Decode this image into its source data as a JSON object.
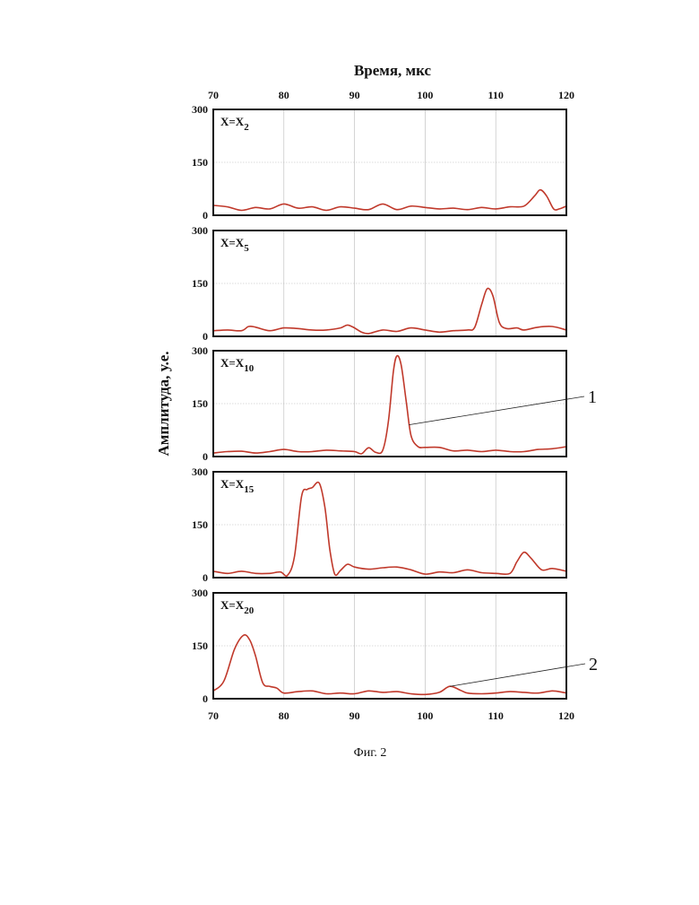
{
  "chart_data": {
    "type": "line",
    "title": "Время, мкс",
    "ylabel": "Амплитуда, у.е.",
    "xlim": [
      70,
      120
    ],
    "ylim": [
      0,
      300
    ],
    "x_ticks": [
      70,
      80,
      90,
      100,
      110,
      120
    ],
    "y_ticks": [
      0,
      150,
      300
    ],
    "grid": true,
    "line_color": "#c0392b",
    "grid_color": "#b8b8b8",
    "caption": "Фиг. 2",
    "panels": [
      {
        "label_main": "X=X",
        "label_sub": "2",
        "points": [
          [
            70,
            28
          ],
          [
            72,
            24
          ],
          [
            74,
            14
          ],
          [
            76,
            22
          ],
          [
            78,
            18
          ],
          [
            80,
            32
          ],
          [
            82,
            20
          ],
          [
            84,
            24
          ],
          [
            86,
            14
          ],
          [
            88,
            24
          ],
          [
            90,
            20
          ],
          [
            92,
            16
          ],
          [
            94,
            32
          ],
          [
            96,
            16
          ],
          [
            98,
            26
          ],
          [
            100,
            22
          ],
          [
            102,
            18
          ],
          [
            104,
            20
          ],
          [
            106,
            16
          ],
          [
            108,
            22
          ],
          [
            110,
            18
          ],
          [
            112,
            24
          ],
          [
            114,
            26
          ],
          [
            115.5,
            55
          ],
          [
            116.3,
            72
          ],
          [
            117.2,
            55
          ],
          [
            118.2,
            18
          ],
          [
            119,
            18
          ],
          [
            120,
            26
          ]
        ]
      },
      {
        "label_main": "X=X",
        "label_sub": "5",
        "points": [
          [
            70,
            16
          ],
          [
            72,
            18
          ],
          [
            74,
            16
          ],
          [
            75,
            28
          ],
          [
            76,
            26
          ],
          [
            78,
            16
          ],
          [
            80,
            24
          ],
          [
            82,
            22
          ],
          [
            84,
            18
          ],
          [
            86,
            18
          ],
          [
            88,
            24
          ],
          [
            89,
            32
          ],
          [
            90,
            24
          ],
          [
            91,
            12
          ],
          [
            92,
            8
          ],
          [
            94,
            18
          ],
          [
            96,
            14
          ],
          [
            98,
            24
          ],
          [
            100,
            18
          ],
          [
            102,
            12
          ],
          [
            104,
            16
          ],
          [
            106,
            18
          ],
          [
            107,
            25
          ],
          [
            108,
            90
          ],
          [
            108.8,
            135
          ],
          [
            109.6,
            115
          ],
          [
            110.5,
            40
          ],
          [
            111.5,
            22
          ],
          [
            113,
            24
          ],
          [
            114,
            18
          ],
          [
            116,
            26
          ],
          [
            118,
            28
          ],
          [
            120,
            18
          ]
        ]
      },
      {
        "label_main": "X=X",
        "label_sub": "10",
        "points": [
          [
            70,
            10
          ],
          [
            72,
            14
          ],
          [
            74,
            15
          ],
          [
            76,
            10
          ],
          [
            78,
            14
          ],
          [
            80,
            20
          ],
          [
            82,
            14
          ],
          [
            84,
            14
          ],
          [
            86,
            18
          ],
          [
            88,
            16
          ],
          [
            90,
            14
          ],
          [
            91,
            8
          ],
          [
            92,
            25
          ],
          [
            93,
            12
          ],
          [
            94,
            18
          ],
          [
            94.8,
            100
          ],
          [
            95.5,
            240
          ],
          [
            96,
            285
          ],
          [
            96.6,
            260
          ],
          [
            97.3,
            160
          ],
          [
            98,
            60
          ],
          [
            99,
            28
          ],
          [
            100,
            26
          ],
          [
            102,
            26
          ],
          [
            104,
            16
          ],
          [
            106,
            18
          ],
          [
            108,
            14
          ],
          [
            110,
            18
          ],
          [
            112,
            14
          ],
          [
            114,
            14
          ],
          [
            116,
            20
          ],
          [
            118,
            22
          ],
          [
            120,
            28
          ]
        ]
      },
      {
        "label_main": "X=X",
        "label_sub": "15",
        "points": [
          [
            70,
            18
          ],
          [
            72,
            12
          ],
          [
            74,
            18
          ],
          [
            76,
            12
          ],
          [
            78,
            12
          ],
          [
            79.5,
            16
          ],
          [
            80.5,
            6
          ],
          [
            81.5,
            60
          ],
          [
            82.5,
            230
          ],
          [
            83.3,
            250
          ],
          [
            84,
            255
          ],
          [
            85,
            268
          ],
          [
            85.8,
            200
          ],
          [
            86.5,
            80
          ],
          [
            87.2,
            10
          ],
          [
            88,
            20
          ],
          [
            89,
            38
          ],
          [
            90,
            30
          ],
          [
            92,
            24
          ],
          [
            94,
            28
          ],
          [
            96,
            30
          ],
          [
            98,
            22
          ],
          [
            100,
            10
          ],
          [
            102,
            16
          ],
          [
            104,
            14
          ],
          [
            106,
            22
          ],
          [
            108,
            14
          ],
          [
            110,
            12
          ],
          [
            112,
            12
          ],
          [
            113,
            45
          ],
          [
            114,
            72
          ],
          [
            115,
            55
          ],
          [
            116.5,
            22
          ],
          [
            118,
            26
          ],
          [
            120,
            18
          ]
        ]
      },
      {
        "label_main": "X=X",
        "label_sub": "20",
        "points": [
          [
            70,
            22
          ],
          [
            71.5,
            50
          ],
          [
            73,
            140
          ],
          [
            74.3,
            180
          ],
          [
            75.2,
            165
          ],
          [
            76,
            120
          ],
          [
            77,
            45
          ],
          [
            78,
            35
          ],
          [
            79,
            30
          ],
          [
            80,
            16
          ],
          [
            82,
            20
          ],
          [
            84,
            22
          ],
          [
            86,
            14
          ],
          [
            88,
            16
          ],
          [
            90,
            14
          ],
          [
            92,
            22
          ],
          [
            94,
            18
          ],
          [
            96,
            20
          ],
          [
            98,
            14
          ],
          [
            100,
            12
          ],
          [
            102,
            18
          ],
          [
            103.5,
            35
          ],
          [
            105,
            24
          ],
          [
            106,
            16
          ],
          [
            108,
            14
          ],
          [
            110,
            16
          ],
          [
            112,
            20
          ],
          [
            114,
            18
          ],
          [
            116,
            16
          ],
          [
            118,
            22
          ],
          [
            119.5,
            18
          ],
          [
            120,
            16
          ]
        ]
      }
    ],
    "annotations": [
      {
        "text": "1",
        "panel": 2,
        "target": [
          97.7,
          90
        ]
      },
      {
        "text": "2",
        "panel": 4,
        "target": [
          103.5,
          35
        ]
      }
    ]
  }
}
